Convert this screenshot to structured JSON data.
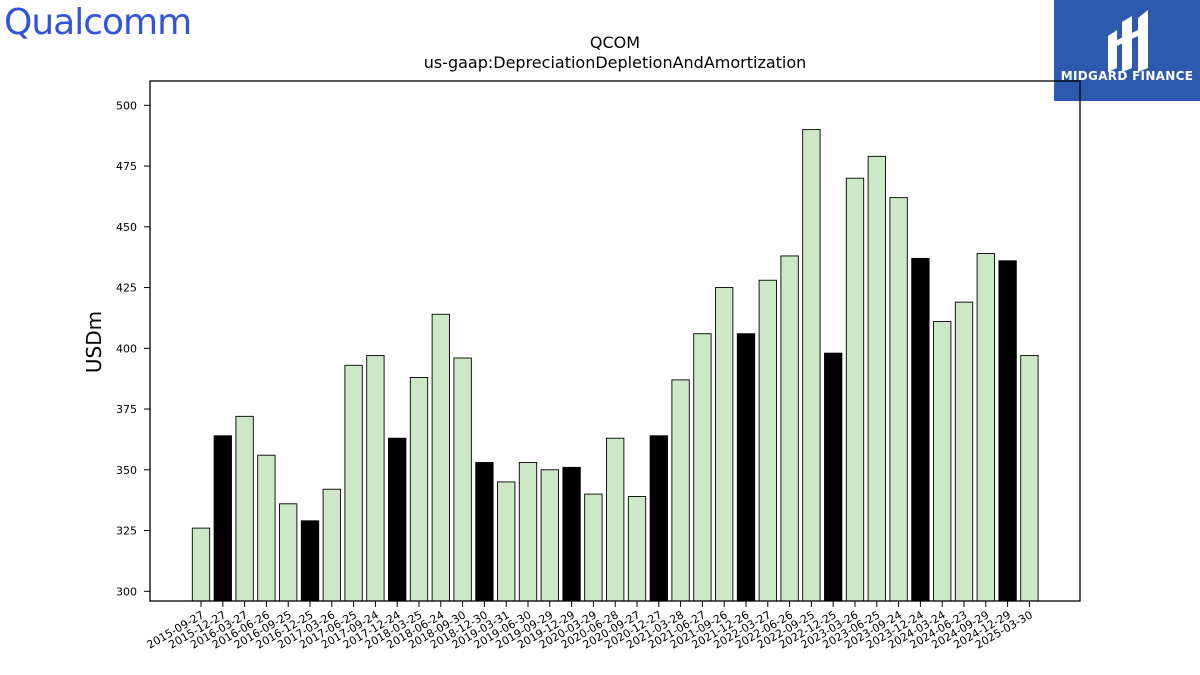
{
  "logos": {
    "left_text": "Qualcomm",
    "right_text": "MIDGARD FINANCE"
  },
  "chart_data": {
    "type": "bar",
    "title": "QCOM",
    "subtitle": "us-gaap:DepreciationDepletionAndAmortization",
    "ylabel": "USDm",
    "ylim": [
      296,
      510
    ],
    "yticks": [
      300,
      325,
      350,
      375,
      400,
      425,
      450,
      475,
      500
    ],
    "colors": {
      "default": "#cce8c6",
      "highlight": "#000000",
      "edge": "#000000"
    },
    "categories": [
      "2015-09-27",
      "2015-12-27",
      "2016-03-27",
      "2016-06-26",
      "2016-09-25",
      "2016-12-25",
      "2017-03-26",
      "2017-06-25",
      "2017-09-24",
      "2017-12-24",
      "2018-03-25",
      "2018-06-24",
      "2018-09-30",
      "2018-12-30",
      "2019-03-31",
      "2019-06-30",
      "2019-09-29",
      "2019-12-29",
      "2020-03-29",
      "2020-06-28",
      "2020-09-27",
      "2020-12-27",
      "2021-03-28",
      "2021-06-27",
      "2021-09-26",
      "2021-12-26",
      "2022-03-27",
      "2022-06-26",
      "2022-09-25",
      "2022-12-25",
      "2023-03-26",
      "2023-06-25",
      "2023-09-24",
      "2023-12-24",
      "2024-03-24",
      "2024-06-23",
      "2024-09-29",
      "2024-12-29",
      "2025-03-30"
    ],
    "values": [
      326,
      364,
      372,
      356,
      336,
      329,
      342,
      393,
      397,
      363,
      388,
      414,
      396,
      353,
      345,
      353,
      350,
      351,
      340,
      363,
      339,
      364,
      387,
      406,
      425,
      406,
      428,
      438,
      490,
      398,
      470,
      479,
      462,
      437,
      411,
      419,
      439,
      436,
      397
    ],
    "highlight": [
      false,
      true,
      false,
      false,
      false,
      true,
      false,
      false,
      false,
      true,
      false,
      false,
      false,
      true,
      false,
      false,
      false,
      true,
      false,
      false,
      false,
      true,
      false,
      false,
      false,
      true,
      false,
      false,
      false,
      true,
      false,
      false,
      false,
      true,
      false,
      false,
      false,
      true,
      false
    ]
  }
}
